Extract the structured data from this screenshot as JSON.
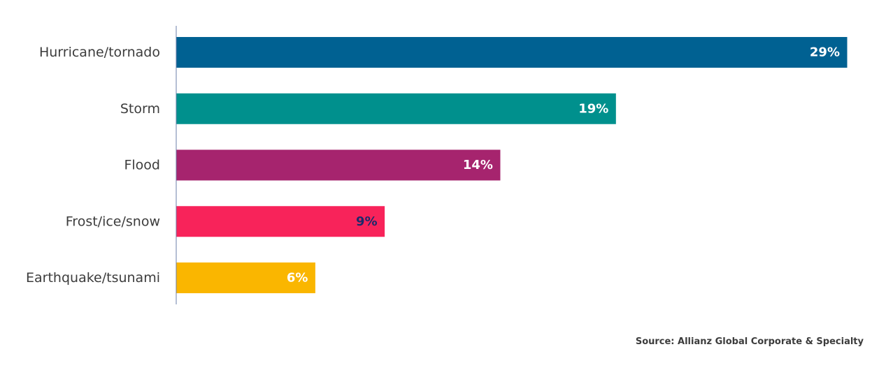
{
  "chart_data": {
    "type": "bar",
    "orientation": "horizontal",
    "categories": [
      "Hurricane/tornado",
      "Storm",
      "Flood",
      "Frost/ice/snow",
      "Earthquake/tsunami"
    ],
    "values": [
      29,
      19,
      14,
      9,
      6
    ],
    "value_labels": [
      "29%",
      "19%",
      "14%",
      "9%",
      "6%"
    ],
    "colors": [
      "#006192",
      "#00908d",
      "#a6246e",
      "#f8235a",
      "#fab600"
    ],
    "label_colors": [
      "#ffffff",
      "#ffffff",
      "#ffffff",
      "#1b2a6b",
      "#ffffff"
    ],
    "axis_color": "#6b7fa8",
    "xlim": [
      0,
      29
    ]
  },
  "source": "Source: Allianz Global Corporate & Specialty"
}
